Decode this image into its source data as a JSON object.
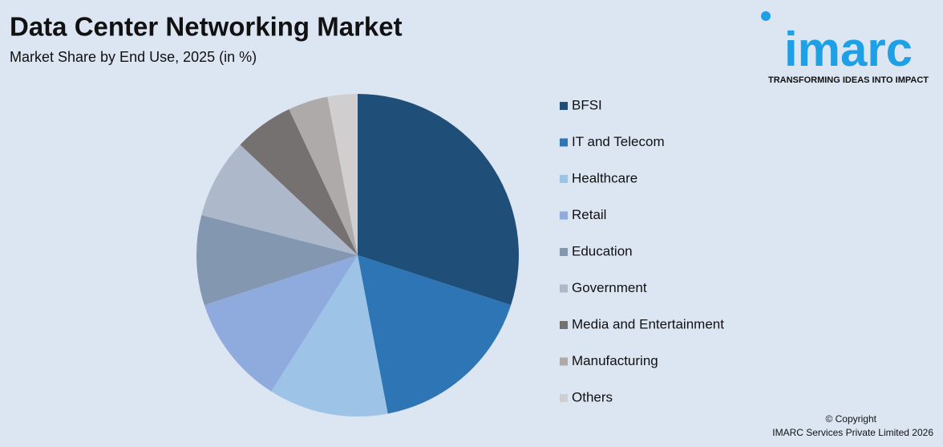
{
  "chart_data": {
    "type": "pie",
    "title": "Data Center Networking Market",
    "subtitle": "Market Share by End Use, 2025 (in %)",
    "categories": [
      "BFSI",
      "IT and Telecom",
      "Healthcare",
      "Retail",
      "Education",
      "Government",
      "Media and Entertainment",
      "Manufacturing",
      "Others"
    ],
    "values": [
      30,
      17,
      12,
      11,
      9,
      8,
      6,
      4,
      3
    ],
    "colors": [
      "#1f4e79",
      "#2e75b6",
      "#9dc3e6",
      "#8faadc",
      "#8497b0",
      "#adb9ca",
      "#767171",
      "#aeaaaa",
      "#d0cece"
    ],
    "legend": "right"
  },
  "logo": {
    "name": "imarc",
    "tagline": "TRANSFORMING IDEAS INTO IMPACT"
  },
  "footer": {
    "copyright": "© Copyright",
    "company": "IMARC Services Private Limited 2026"
  }
}
